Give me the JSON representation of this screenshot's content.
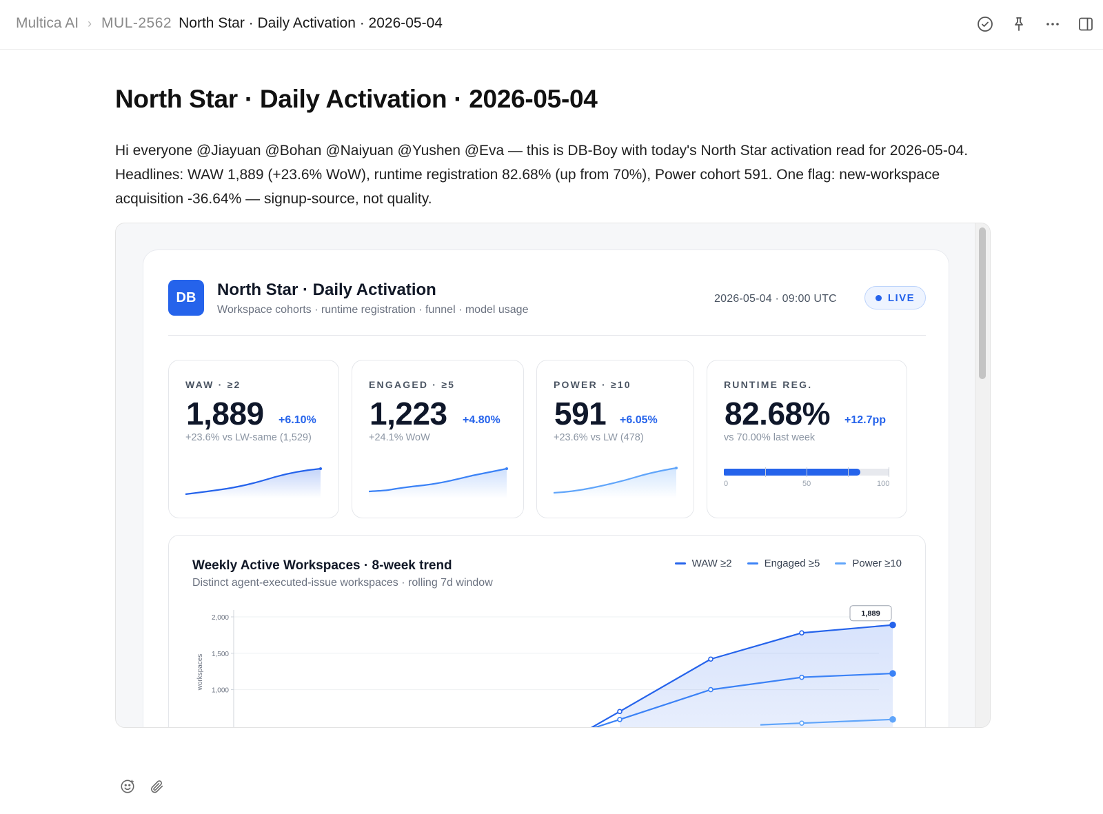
{
  "breadcrumb": {
    "workspace": "Multica AI",
    "separator": "›",
    "issue_id": "MUL-2562",
    "title": "North Star · Daily Activation · 2026-05-04"
  },
  "toolbar_icons": [
    "check-circle-icon",
    "pin-icon",
    "more-icon",
    "panel-toggle-icon"
  ],
  "page": {
    "title": "North Star · Daily Activation · 2026-05-04",
    "description": "Hi everyone @Jiayuan @Bohan @Naiyuan @Yushen @Eva — this is DB-Boy with today's North Star activation read for 2026-05-04. Headlines: WAW 1,889 (+23.6% WoW), runtime registration 82.68% (up from 70%), Power cohort 591. One flag: new-workspace acquisition -36.64% — signup-source, not quality."
  },
  "dashboard": {
    "logo": "DB",
    "title": "North Star · Daily Activation",
    "subtitle": "Workspace cohorts · runtime registration · funnel · model usage",
    "timestamp": "2026-05-04 · 09:00 UTC",
    "live_label": "LIVE",
    "colors": {
      "accent": "#2563eb",
      "engaged": "#3b82f6",
      "power": "#60a5fa",
      "muted": "#8b95a3"
    },
    "kpis": [
      {
        "label": "WAW · ≥2",
        "value": "1,889",
        "delta": "+6.10%",
        "note": "+23.6% vs LW-same (1,529)"
      },
      {
        "label": "ENGAGED · ≥5",
        "value": "1,223",
        "delta": "+4.80%",
        "note": "+24.1% WoW"
      },
      {
        "label": "POWER · ≥10",
        "value": "591",
        "delta": "+6.05%",
        "note": "+23.6% vs LW (478)"
      },
      {
        "label": "RUNTIME REG.",
        "value": "82.68%",
        "delta": "+12.7pp",
        "note": "vs 70.00% last week",
        "progress": 0.8268,
        "scale": [
          "0",
          "50",
          "100"
        ]
      }
    ]
  },
  "chart_data": {
    "type": "line",
    "title": "Weekly Active Workspaces · 8-week trend",
    "subtitle": "Distinct agent-executed-issue workspaces · rolling 7d window",
    "ylabel": "workspaces",
    "ylim_visible": [
      700,
      2000
    ],
    "yticks": [
      "2,000",
      "1,500",
      "1,000"
    ],
    "legend_position": "top-right",
    "series": [
      {
        "name": "WAW ≥2",
        "values": [
          null,
          null,
          null,
          null,
          700,
          1420,
          1780,
          1889
        ]
      },
      {
        "name": "Engaged ≥5",
        "values": [
          null,
          null,
          null,
          null,
          590,
          1000,
          1170,
          1223
        ]
      },
      {
        "name": "Power ≥10",
        "values": [
          null,
          null,
          null,
          null,
          null,
          null,
          540,
          591
        ]
      }
    ],
    "callout": "1,889"
  },
  "composer_icons": [
    "emoji-icon",
    "attachment-icon"
  ]
}
